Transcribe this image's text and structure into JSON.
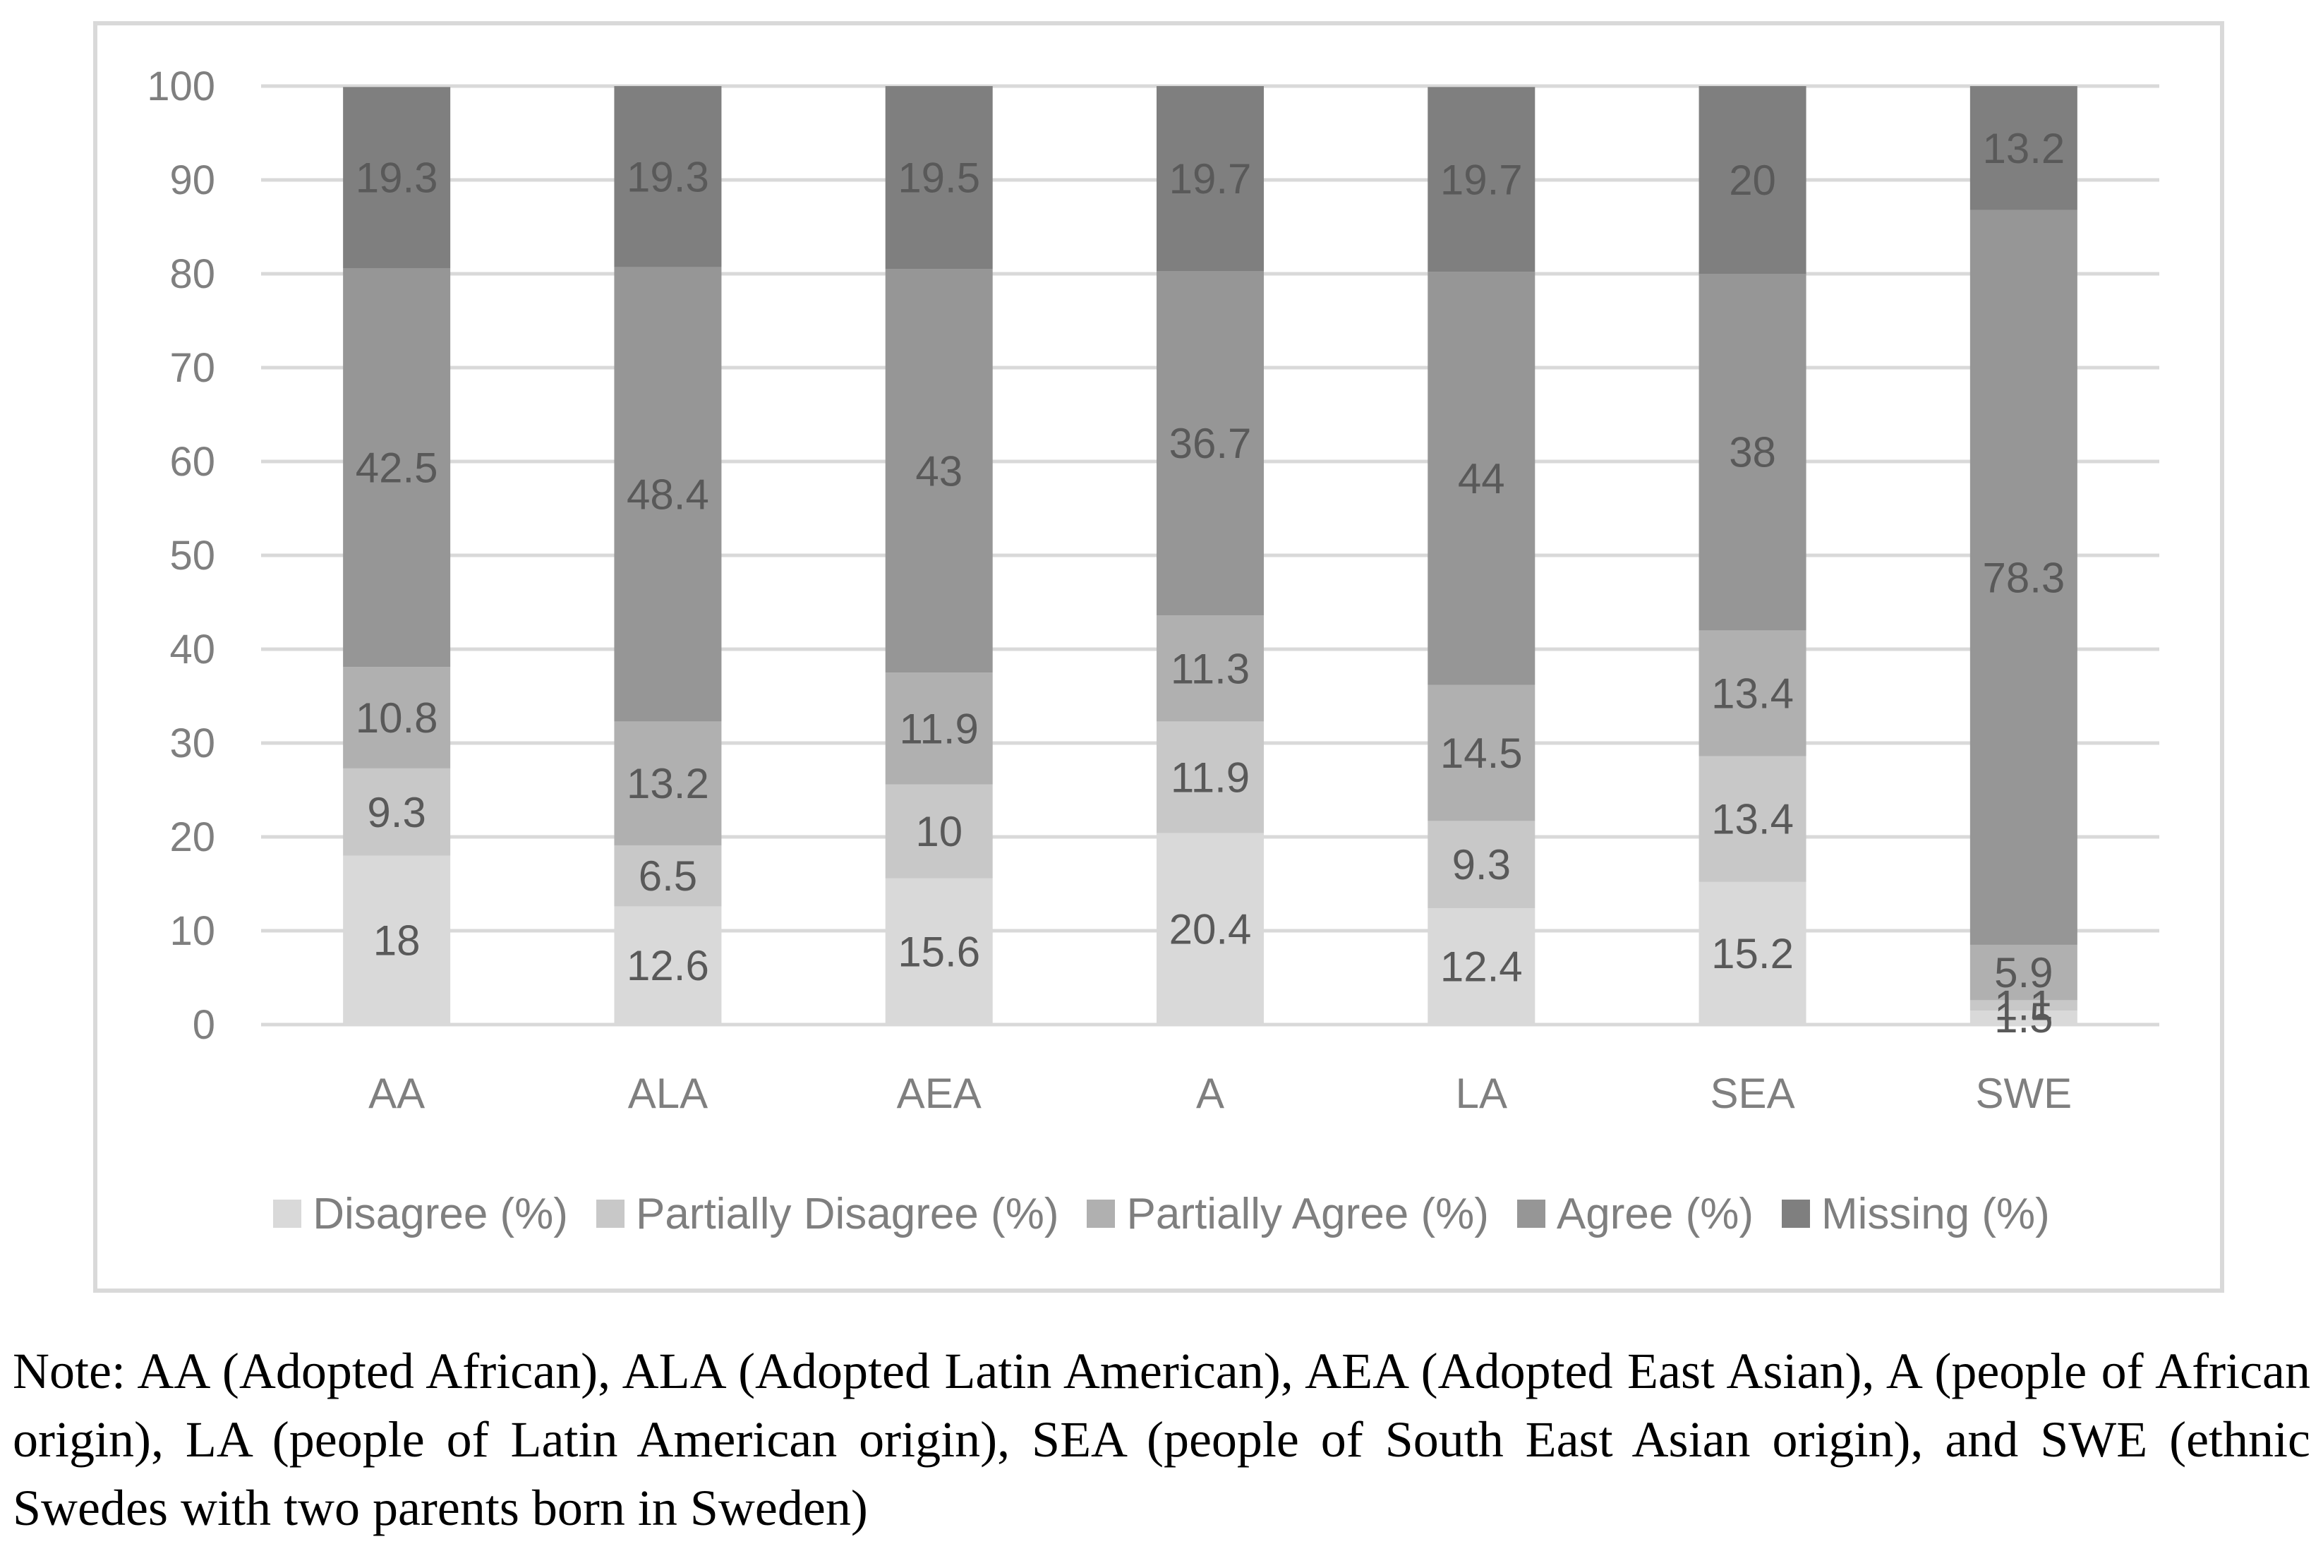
{
  "chart_data": {
    "type": "bar",
    "stacked": true,
    "categories": [
      "AA",
      "ALA",
      "AEA",
      "A",
      "LA",
      "SEA",
      "SWE"
    ],
    "series": [
      {
        "name": "Disagree (%)",
        "color": "#d9d9d9",
        "values": [
          18,
          12.6,
          15.6,
          20.4,
          12.4,
          15.2,
          1.5
        ]
      },
      {
        "name": "Partially Disagree (%)",
        "color": "#c8c8c8",
        "values": [
          9.3,
          6.5,
          10,
          11.9,
          9.3,
          13.4,
          1.1
        ]
      },
      {
        "name": "Partially Agree (%)",
        "color": "#b0b0b0",
        "values": [
          10.8,
          13.2,
          11.9,
          11.3,
          14.5,
          13.4,
          5.9
        ]
      },
      {
        "name": "Agree (%)",
        "color": "#969696",
        "values": [
          42.5,
          48.4,
          43,
          36.7,
          44,
          38,
          78.3
        ]
      },
      {
        "name": "Missing (%)",
        "color": "#7f7f7f",
        "values": [
          19.3,
          19.3,
          19.5,
          19.7,
          19.7,
          20,
          13.2
        ]
      }
    ],
    "ylim": [
      0,
      100
    ],
    "yticks": [
      0,
      10,
      20,
      30,
      40,
      50,
      60,
      70,
      80,
      90,
      100
    ],
    "grid": true,
    "legend": "bottom",
    "title": "",
    "xlabel": "",
    "ylabel": ""
  },
  "note": "Note: AA (Adopted African), ALA (Adopted Latin American), AEA (Adopted East Asian), A (people of African origin), LA (people of Latin American origin), SEA (people of South East Asian origin), and SWE (ethnic Swedes with two parents born in Sweden)"
}
